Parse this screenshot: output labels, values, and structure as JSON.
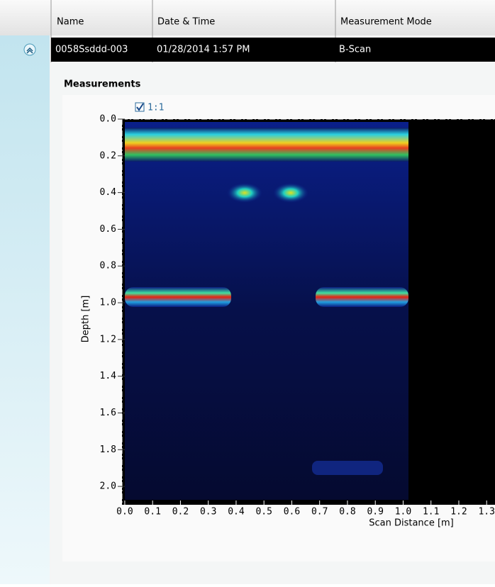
{
  "table": {
    "columns": [
      "Name",
      "Date & Time",
      "Measurement Mode"
    ],
    "rows": [
      [
        "0058Ssddd-003",
        "01/28/2014 1:57 PM",
        "B-Scan"
      ]
    ]
  },
  "section_title": "Measurements",
  "chart_data": {
    "type": "heatmap",
    "checkbox_label": "1:1",
    "checkbox_checked": true,
    "xlabel": "Scan Distance [m]",
    "ylabel": "Depth [m]",
    "xlim": [
      -0.01,
      1.33
    ],
    "ylim": [
      0,
      2.1
    ],
    "y_inverted": true,
    "xticks": [
      {
        "value": 0,
        "label": "0.0"
      },
      0.1,
      0.2,
      0.3,
      0.4,
      0.5,
      0.6,
      0.7,
      0.8,
      0.9,
      {
        "value": 1,
        "label": "1.0"
      },
      1.1,
      1.2,
      1.3
    ],
    "yticks": [
      {
        "value": 0,
        "label": "0.0"
      },
      0.2,
      0.4,
      0.6,
      0.8,
      {
        "value": 1,
        "label": "1.0"
      },
      1.2,
      1.4,
      1.6,
      1.8,
      {
        "value": 2,
        "label": "2.0"
      }
    ]
  }
}
